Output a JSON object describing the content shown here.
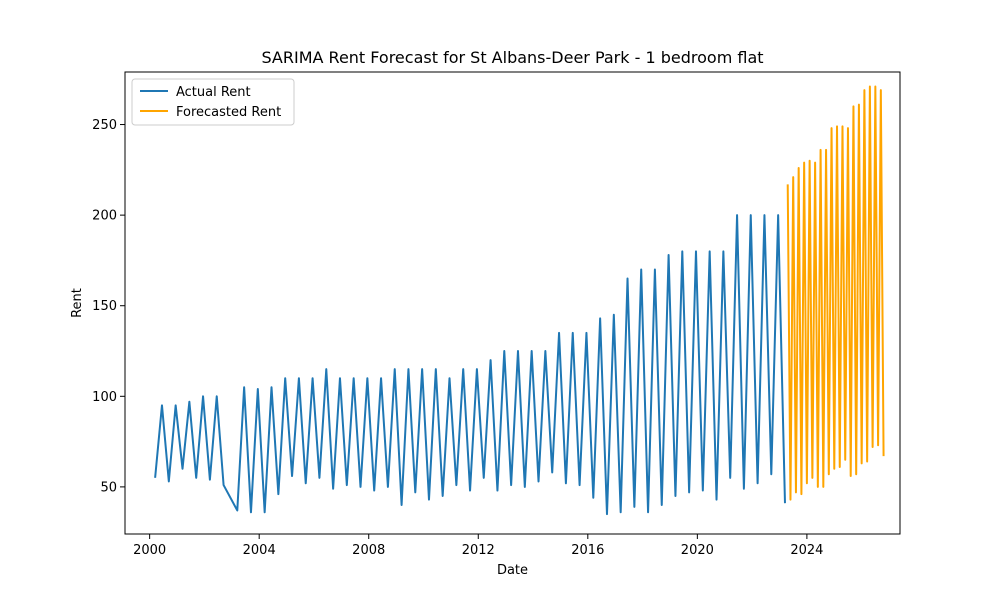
{
  "chart_data": {
    "type": "line",
    "title": "SARIMA Rent Forecast for St Albans-Deer Park - 1 bedroom flat",
    "xlabel": "Date",
    "ylabel": "Rent",
    "xlim": [
      1999.1,
      2027.4
    ],
    "ylim": [
      24,
      279
    ],
    "x_ticks": [
      2000,
      2004,
      2008,
      2012,
      2016,
      2020,
      2024
    ],
    "y_ticks": [
      50,
      100,
      150,
      200,
      250
    ],
    "grid": false,
    "legend_position": "upper-left",
    "series": [
      {
        "name": "Actual Rent",
        "color": "#1f77b4",
        "points": [
          [
            2000.2,
            55
          ],
          [
            2000.45,
            95
          ],
          [
            2000.7,
            53
          ],
          [
            2000.95,
            95
          ],
          [
            2001.2,
            60
          ],
          [
            2001.45,
            97
          ],
          [
            2001.7,
            55
          ],
          [
            2001.95,
            100
          ],
          [
            2002.2,
            54
          ],
          [
            2002.45,
            100
          ],
          [
            2002.7,
            51
          ],
          [
            2003.2,
            37
          ],
          [
            2003.45,
            105
          ],
          [
            2003.7,
            36
          ],
          [
            2003.95,
            104
          ],
          [
            2004.2,
            36
          ],
          [
            2004.45,
            105
          ],
          [
            2004.7,
            46
          ],
          [
            2004.95,
            110
          ],
          [
            2005.2,
            56
          ],
          [
            2005.45,
            110
          ],
          [
            2005.7,
            52
          ],
          [
            2005.95,
            110
          ],
          [
            2006.2,
            55
          ],
          [
            2006.45,
            115
          ],
          [
            2006.7,
            49
          ],
          [
            2006.95,
            110
          ],
          [
            2007.2,
            51
          ],
          [
            2007.45,
            110
          ],
          [
            2007.7,
            50
          ],
          [
            2007.95,
            110
          ],
          [
            2008.2,
            48
          ],
          [
            2008.45,
            110
          ],
          [
            2008.7,
            50
          ],
          [
            2008.95,
            115
          ],
          [
            2009.2,
            40
          ],
          [
            2009.45,
            115
          ],
          [
            2009.7,
            47
          ],
          [
            2009.95,
            115
          ],
          [
            2010.2,
            43
          ],
          [
            2010.45,
            115
          ],
          [
            2010.7,
            45
          ],
          [
            2010.95,
            110
          ],
          [
            2011.2,
            51
          ],
          [
            2011.45,
            115
          ],
          [
            2011.7,
            48
          ],
          [
            2011.95,
            115
          ],
          [
            2012.2,
            55
          ],
          [
            2012.45,
            120
          ],
          [
            2012.7,
            48
          ],
          [
            2012.95,
            125
          ],
          [
            2013.2,
            51
          ],
          [
            2013.45,
            125
          ],
          [
            2013.7,
            50
          ],
          [
            2013.95,
            125
          ],
          [
            2014.2,
            53
          ],
          [
            2014.45,
            125
          ],
          [
            2014.7,
            58
          ],
          [
            2014.95,
            135
          ],
          [
            2015.2,
            52
          ],
          [
            2015.45,
            135
          ],
          [
            2015.7,
            51
          ],
          [
            2015.95,
            135
          ],
          [
            2016.2,
            44
          ],
          [
            2016.45,
            143
          ],
          [
            2016.7,
            35
          ],
          [
            2016.95,
            145
          ],
          [
            2017.2,
            36
          ],
          [
            2017.45,
            165
          ],
          [
            2017.7,
            39
          ],
          [
            2017.95,
            170
          ],
          [
            2018.2,
            36
          ],
          [
            2018.45,
            170
          ],
          [
            2018.7,
            40
          ],
          [
            2018.95,
            178
          ],
          [
            2019.2,
            45
          ],
          [
            2019.45,
            180
          ],
          [
            2019.7,
            47
          ],
          [
            2019.95,
            180
          ],
          [
            2020.2,
            48
          ],
          [
            2020.45,
            180
          ],
          [
            2020.7,
            43
          ],
          [
            2020.95,
            180
          ],
          [
            2021.2,
            55
          ],
          [
            2021.45,
            200
          ],
          [
            2021.7,
            49
          ],
          [
            2021.95,
            200
          ],
          [
            2022.2,
            52
          ],
          [
            2022.45,
            200
          ],
          [
            2022.7,
            57
          ],
          [
            2022.95,
            200
          ],
          [
            2023.2,
            41
          ]
        ]
      },
      {
        "name": "Forecasted Rent",
        "color": "#ffa500",
        "points": [
          [
            2023.3,
            217
          ],
          [
            2023.4,
            43
          ],
          [
            2023.5,
            221
          ],
          [
            2023.6,
            47
          ],
          [
            2023.7,
            226
          ],
          [
            2023.8,
            46
          ],
          [
            2023.9,
            229
          ],
          [
            2024.0,
            52
          ],
          [
            2024.1,
            230
          ],
          [
            2024.2,
            55
          ],
          [
            2024.3,
            229
          ],
          [
            2024.4,
            50
          ],
          [
            2024.5,
            236
          ],
          [
            2024.6,
            50
          ],
          [
            2024.7,
            236
          ],
          [
            2024.8,
            57
          ],
          [
            2024.9,
            248
          ],
          [
            2025.0,
            60
          ],
          [
            2025.1,
            249
          ],
          [
            2025.2,
            61
          ],
          [
            2025.3,
            249
          ],
          [
            2025.4,
            65
          ],
          [
            2025.5,
            248
          ],
          [
            2025.6,
            56
          ],
          [
            2025.7,
            260
          ],
          [
            2025.8,
            57
          ],
          [
            2025.9,
            261
          ],
          [
            2026.0,
            63
          ],
          [
            2026.1,
            269
          ],
          [
            2026.2,
            64
          ],
          [
            2026.3,
            271
          ],
          [
            2026.4,
            72
          ],
          [
            2026.5,
            271
          ],
          [
            2026.6,
            73
          ],
          [
            2026.7,
            269
          ],
          [
            2026.8,
            67
          ]
        ]
      }
    ]
  }
}
